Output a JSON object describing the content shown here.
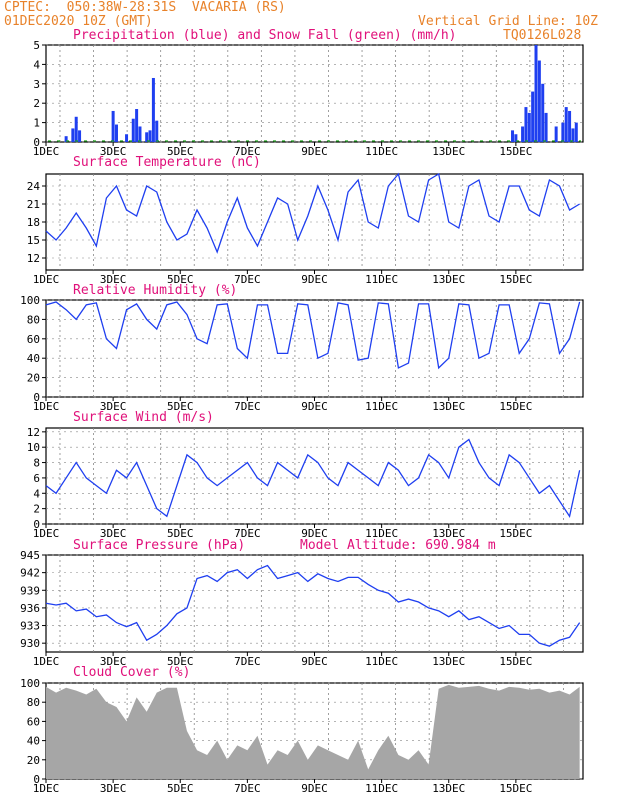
{
  "header": {
    "line1": "CPTEC:  050:38W-28:31S  VACARIA (RS)",
    "line2": "01DEC2020 10Z (GMT)",
    "grid_note": "Vertical Grid Line: 10Z",
    "code": "TQ0126L028"
  },
  "x_labels": [
    "1DEC",
    "3DEC",
    "5DEC",
    "7DEC",
    "9DEC",
    "11DEC",
    "13DEC",
    "15DEC"
  ],
  "colors": {
    "header": "#e8822a",
    "title": "#e0107a",
    "line": "#1f3ff0",
    "precip": "#1f3ff0",
    "snow": "#1aa01a",
    "cloud": "#a6a6a6",
    "grid": "#888888"
  },
  "chart_data": [
    {
      "type": "bar",
      "title": "Precipitation (blue) and Snow Fall (green) (mm/h)",
      "ylim": [
        0,
        5
      ],
      "yticks": [
        0,
        1,
        2,
        3,
        4,
        5
      ],
      "series": [
        {
          "name": "Precipitation",
          "values_at": [
            [
              0.6,
              0.3
            ],
            [
              0.8,
              0.7
            ],
            [
              0.9,
              1.3
            ],
            [
              1.0,
              0.6
            ],
            [
              2.0,
              1.6
            ],
            [
              2.1,
              0.9
            ],
            [
              2.4,
              0.4
            ],
            [
              2.6,
              1.2
            ],
            [
              2.7,
              1.7
            ],
            [
              2.8,
              0.8
            ],
            [
              3.0,
              0.5
            ],
            [
              3.1,
              0.6
            ],
            [
              3.2,
              3.3
            ],
            [
              3.3,
              1.1
            ],
            [
              13.9,
              0.6
            ],
            [
              14.0,
              0.4
            ],
            [
              14.2,
              0.8
            ],
            [
              14.3,
              1.8
            ],
            [
              14.4,
              1.5
            ],
            [
              14.5,
              2.6
            ],
            [
              14.6,
              5.0
            ],
            [
              14.7,
              4.2
            ],
            [
              14.8,
              3.0
            ],
            [
              14.9,
              1.5
            ],
            [
              15.2,
              0.8
            ],
            [
              15.4,
              1.0
            ],
            [
              15.5,
              1.8
            ],
            [
              15.6,
              1.6
            ],
            [
              15.7,
              0.7
            ],
            [
              15.8,
              1.0
            ]
          ]
        }
      ]
    },
    {
      "type": "line",
      "title": "Surface Temperature (nC)",
      "ylim": [
        10,
        26
      ],
      "yticks": [
        12,
        15,
        18,
        21,
        24
      ],
      "x": [
        0,
        0.3,
        0.6,
        0.9,
        1.2,
        1.5,
        1.8,
        2.1,
        2.4,
        2.7,
        3.0,
        3.3,
        3.6,
        3.9,
        4.2,
        4.5,
        4.8,
        5.1,
        5.4,
        5.7,
        6.0,
        6.3,
        6.6,
        6.9,
        7.2,
        7.5,
        7.8,
        8.1,
        8.4,
        8.7,
        9.0,
        9.3,
        9.6,
        9.9,
        10.2,
        10.5,
        10.8,
        11.1,
        11.4,
        11.7,
        12.0,
        12.3,
        12.6,
        12.9,
        13.2,
        13.5,
        13.8,
        14.1,
        14.4,
        14.7,
        15.0,
        15.3,
        15.6,
        15.9
      ],
      "y": [
        16.5,
        15,
        17,
        19.5,
        17,
        14,
        22,
        24,
        20,
        19,
        24,
        23,
        18,
        15,
        16,
        20,
        17,
        13,
        18,
        22,
        17,
        14,
        18,
        22,
        21,
        15,
        19,
        24,
        20,
        15,
        23,
        25,
        18,
        17,
        24,
        26,
        19,
        18,
        25,
        26,
        18,
        17,
        24,
        25,
        19,
        18,
        24,
        24,
        20,
        19,
        25,
        24,
        20,
        21
      ]
    },
    {
      "type": "line",
      "title": "Relative Humidity (%)",
      "ylim": [
        0,
        100
      ],
      "yticks": [
        0,
        20,
        40,
        60,
        80,
        100
      ],
      "x": [
        0,
        0.3,
        0.6,
        0.9,
        1.2,
        1.5,
        1.8,
        2.1,
        2.4,
        2.7,
        3.0,
        3.3,
        3.6,
        3.9,
        4.2,
        4.5,
        4.8,
        5.1,
        5.4,
        5.7,
        6.0,
        6.3,
        6.6,
        6.9,
        7.2,
        7.5,
        7.8,
        8.1,
        8.4,
        8.7,
        9.0,
        9.3,
        9.6,
        9.9,
        10.2,
        10.5,
        10.8,
        11.1,
        11.4,
        11.7,
        12.0,
        12.3,
        12.6,
        12.9,
        13.2,
        13.5,
        13.8,
        14.1,
        14.4,
        14.7,
        15.0,
        15.3,
        15.6,
        15.9
      ],
      "y": [
        95,
        98,
        90,
        80,
        95,
        97,
        60,
        50,
        90,
        96,
        80,
        70,
        95,
        98,
        85,
        60,
        55,
        95,
        96,
        50,
        40,
        95,
        95,
        45,
        45,
        96,
        95,
        40,
        45,
        97,
        95,
        38,
        40,
        97,
        96,
        30,
        35,
        96,
        96,
        30,
        40,
        96,
        95,
        40,
        45,
        95,
        95,
        45,
        60,
        97,
        96,
        45,
        60,
        98
      ]
    },
    {
      "type": "line",
      "title": "Surface Wind (m/s)",
      "ylim": [
        0,
        12.5
      ],
      "yticks": [
        0,
        2,
        4,
        6,
        8,
        10,
        12
      ],
      "x": [
        0,
        0.3,
        0.6,
        0.9,
        1.2,
        1.5,
        1.8,
        2.1,
        2.4,
        2.7,
        3.0,
        3.3,
        3.6,
        3.9,
        4.2,
        4.5,
        4.8,
        5.1,
        5.4,
        5.7,
        6.0,
        6.3,
        6.6,
        6.9,
        7.2,
        7.5,
        7.8,
        8.1,
        8.4,
        8.7,
        9.0,
        9.3,
        9.6,
        9.9,
        10.2,
        10.5,
        10.8,
        11.1,
        11.4,
        11.7,
        12.0,
        12.3,
        12.6,
        12.9,
        13.2,
        13.5,
        13.8,
        14.1,
        14.4,
        14.7,
        15.0,
        15.3,
        15.6,
        15.9
      ],
      "y": [
        5,
        4,
        6,
        8,
        6,
        5,
        4,
        7,
        6,
        8,
        5,
        2,
        1,
        5,
        9,
        8,
        6,
        5,
        6,
        7,
        8,
        6,
        5,
        8,
        7,
        6,
        9,
        8,
        6,
        5,
        8,
        7,
        6,
        5,
        8,
        7,
        5,
        6,
        9,
        8,
        6,
        10,
        11,
        8,
        6,
        5,
        9,
        8,
        6,
        4,
        5,
        3,
        1,
        7
      ]
    },
    {
      "type": "line",
      "title": "Surface Pressure (hPa)",
      "annotation": "Model Altitude: 690.984 m",
      "ylim": [
        928.5,
        945
      ],
      "yticks": [
        930,
        933,
        936,
        939,
        942,
        945
      ],
      "x": [
        0,
        0.3,
        0.6,
        0.9,
        1.2,
        1.5,
        1.8,
        2.1,
        2.4,
        2.7,
        3.0,
        3.3,
        3.6,
        3.9,
        4.2,
        4.5,
        4.8,
        5.1,
        5.4,
        5.7,
        6.0,
        6.3,
        6.6,
        6.9,
        7.2,
        7.5,
        7.8,
        8.1,
        8.4,
        8.7,
        9.0,
        9.3,
        9.6,
        9.9,
        10.2,
        10.5,
        10.8,
        11.1,
        11.4,
        11.7,
        12.0,
        12.3,
        12.6,
        12.9,
        13.2,
        13.5,
        13.8,
        14.1,
        14.4,
        14.7,
        15.0,
        15.3,
        15.6,
        15.9
      ],
      "y": [
        936.8,
        936.5,
        936.8,
        935.5,
        935.8,
        934.5,
        934.8,
        933.5,
        932.8,
        933.5,
        930.5,
        931.5,
        933.0,
        935.0,
        936.0,
        941.0,
        941.5,
        940.5,
        942.0,
        942.5,
        941.0,
        942.5,
        943.2,
        941.0,
        941.5,
        942.0,
        940.5,
        941.8,
        941.0,
        940.5,
        941.2,
        941.2,
        940.0,
        939.0,
        938.5,
        937.0,
        937.5,
        937.0,
        936.0,
        935.5,
        934.5,
        935.5,
        934.0,
        934.5,
        933.5,
        932.5,
        933.0,
        931.5,
        931.5,
        930.0,
        929.5,
        930.5,
        931.0,
        933.5
      ]
    },
    {
      "type": "area",
      "title": "Cloud Cover (%)",
      "ylim": [
        0,
        100
      ],
      "yticks": [
        0,
        20,
        40,
        60,
        80,
        100
      ],
      "x": [
        0,
        0.3,
        0.6,
        0.9,
        1.2,
        1.5,
        1.8,
        2.1,
        2.4,
        2.7,
        3.0,
        3.3,
        3.6,
        3.9,
        4.2,
        4.5,
        4.8,
        5.1,
        5.4,
        5.7,
        6.0,
        6.3,
        6.6,
        6.9,
        7.2,
        7.5,
        7.8,
        8.1,
        8.4,
        8.7,
        9.0,
        9.3,
        9.6,
        9.9,
        10.2,
        10.5,
        10.8,
        11.1,
        11.4,
        11.7,
        12.0,
        12.3,
        12.6,
        12.9,
        13.2,
        13.5,
        13.8,
        14.1,
        14.4,
        14.7,
        15.0,
        15.3,
        15.6,
        15.9
      ],
      "y": [
        96,
        90,
        95,
        92,
        88,
        94,
        80,
        75,
        60,
        85,
        70,
        90,
        95,
        95,
        50,
        30,
        25,
        40,
        20,
        35,
        30,
        45,
        15,
        30,
        25,
        40,
        20,
        35,
        30,
        25,
        20,
        40,
        10,
        30,
        45,
        25,
        20,
        30,
        15,
        94,
        98,
        95,
        96,
        97,
        94,
        92,
        96,
        95,
        93,
        94,
        90,
        92,
        88,
        96
      ]
    }
  ]
}
